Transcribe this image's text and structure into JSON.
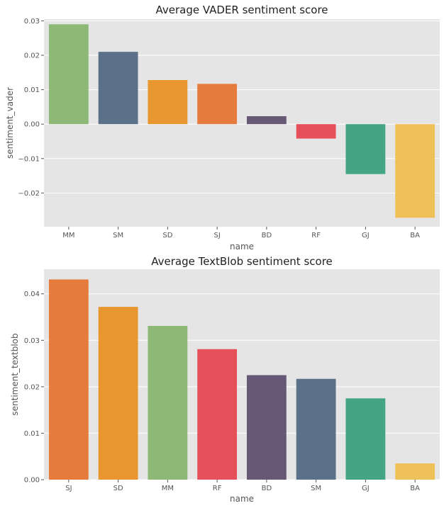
{
  "chart_data": [
    {
      "type": "bar",
      "title": "Average VADER sentiment score",
      "xlabel": "name",
      "ylabel": "sentiment_vader",
      "categories": [
        "MM",
        "SM",
        "SD",
        "SJ",
        "BD",
        "RF",
        "GJ",
        "BA"
      ],
      "values": [
        0.029,
        0.021,
        0.0128,
        0.0117,
        0.0023,
        -0.0042,
        -0.0145,
        -0.0272
      ],
      "colors": [
        "#8DB875",
        "#5A7189",
        "#E8962F",
        "#E57B3D",
        "#675876",
        "#E5505A",
        "#44A585",
        "#EEC058"
      ],
      "ylim": [
        -0.0298,
        0.0305
      ],
      "yticks": [
        -0.02,
        -0.01,
        0.0,
        0.01,
        0.02,
        0.03
      ],
      "ytick_labels": [
        "−0.02",
        "−0.01",
        "0.00",
        "0.01",
        "0.02",
        "0.03"
      ],
      "grid": true
    },
    {
      "type": "bar",
      "title": "Average TextBlob sentiment score",
      "xlabel": "name",
      "ylabel": "sentiment_textblob",
      "categories": [
        "SJ",
        "SD",
        "MM",
        "RF",
        "BD",
        "SM",
        "GJ",
        "BA"
      ],
      "values": [
        0.0431,
        0.0372,
        0.0331,
        0.0281,
        0.0225,
        0.0217,
        0.0175,
        0.0035
      ],
      "colors": [
        "#E57B3D",
        "#E8962F",
        "#8DB875",
        "#E5505A",
        "#675876",
        "#5A7189",
        "#44A585",
        "#EEC058"
      ],
      "ylim": [
        0,
        0.0453
      ],
      "yticks": [
        0.0,
        0.01,
        0.02,
        0.03,
        0.04
      ],
      "ytick_labels": [
        "0.00",
        "0.01",
        "0.02",
        "0.03",
        "0.04"
      ],
      "grid": true
    }
  ],
  "style": {
    "panel_bg": "#E5E5E5",
    "grid_color": "#FFFFFF",
    "text_color": "#555555",
    "title_color": "#222222"
  }
}
